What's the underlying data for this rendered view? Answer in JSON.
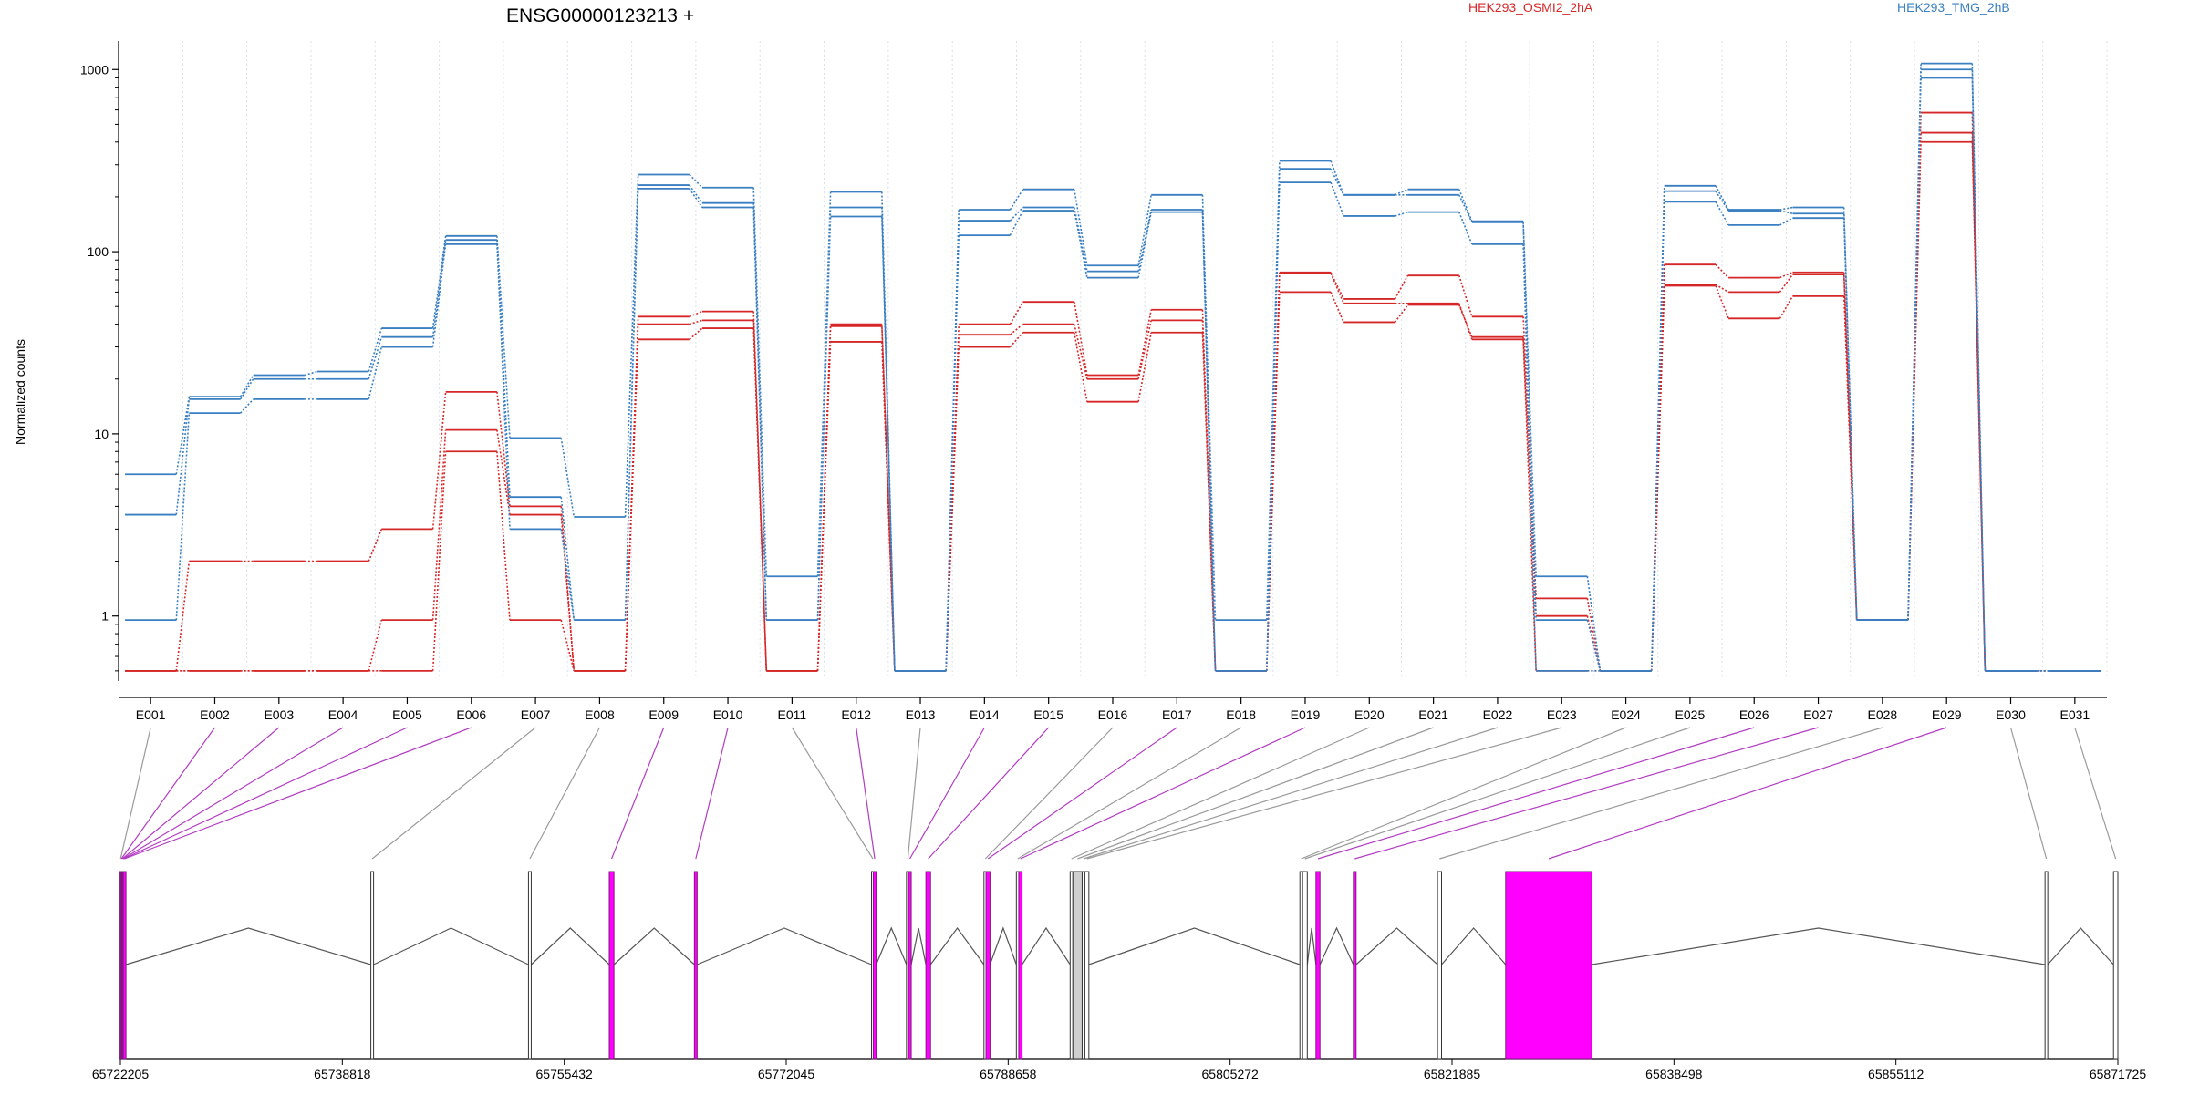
{
  "chart_data": {
    "type": "line",
    "title": "ENSG00000123213 +",
    "xlabel": "",
    "ylabel": "Normalized counts",
    "y_scale": "log",
    "ylim": [
      0.45,
      1100
    ],
    "y_ticks": [
      1,
      10,
      100,
      1000
    ],
    "y_tick_labels": [
      "1",
      "10",
      "100",
      "1000"
    ],
    "grid": "vertical dotted lines at exon boundaries",
    "legend_placement": "top (color-coded text labels)",
    "categories": [
      "E001",
      "E002",
      "E003",
      "E004",
      "E005",
      "E006",
      "E007",
      "E008",
      "E009",
      "E010",
      "E011",
      "E012",
      "E013",
      "E014",
      "E015",
      "E016",
      "E017",
      "E018",
      "E019",
      "E020",
      "E021",
      "E022",
      "E023",
      "E024",
      "E025",
      "E026",
      "E027",
      "E028",
      "E029",
      "E030",
      "E031"
    ],
    "series": [
      {
        "name": "HEK293_OSMI2_2hA",
        "color": "#d62728",
        "group": 1,
        "values": [
          0.5,
          2.0,
          2.0,
          2.0,
          3.0,
          17,
          4.0,
          0.5,
          44,
          47,
          0.5,
          40,
          0.5,
          40,
          53,
          21,
          48,
          0.5,
          77,
          55,
          74,
          44,
          1.25,
          0.5,
          85,
          72,
          77,
          0.95,
          580,
          0.5,
          0.5
        ]
      },
      {
        "name": "",
        "color": "#d62728",
        "group": 1,
        "values": [
          0.5,
          0.5,
          0.5,
          0.5,
          0.95,
          10.5,
          3.6,
          0.5,
          40,
          42,
          0.5,
          39,
          0.5,
          35,
          40,
          20,
          42,
          0.5,
          76,
          52,
          52,
          33,
          1.0,
          0.5,
          66,
          60,
          75,
          0.95,
          450,
          0.5,
          0.5
        ]
      },
      {
        "name": "",
        "color": "#d62728",
        "group": 1,
        "values": [
          0.5,
          0.5,
          0.5,
          0.5,
          0.5,
          8.0,
          0.95,
          0.5,
          33,
          38,
          0.5,
          32,
          0.5,
          30,
          36,
          15,
          36,
          0.5,
          60,
          41,
          51,
          34,
          0.5,
          0.5,
          65,
          43,
          57,
          0.95,
          400,
          0.5,
          0.5
        ]
      },
      {
        "name": "HEK293_TMG_2hB",
        "color": "#3a7fc1",
        "group": 2,
        "values": [
          6.0,
          16,
          21,
          22,
          38,
          122,
          9.5,
          3.5,
          265,
          225,
          1.65,
          213,
          0.5,
          170,
          220,
          84,
          205,
          0.95,
          315,
          205,
          220,
          147,
          1.65,
          0.5,
          230,
          170,
          175,
          0.95,
          1080,
          0.5,
          0.5
        ]
      },
      {
        "name": "",
        "color": "#3a7fc1",
        "group": 2,
        "values": [
          3.6,
          15.5,
          20,
          20,
          34,
          116,
          4.5,
          0.95,
          232,
          185,
          0.95,
          175,
          0.5,
          148,
          175,
          78,
          170,
          0.5,
          285,
          205,
          205,
          145,
          0.95,
          0.5,
          215,
          168,
          162,
          0.95,
          1000,
          0.5,
          0.5
        ]
      },
      {
        "name": "",
        "color": "#3a7fc1",
        "group": 2,
        "values": [
          0.95,
          13,
          15.5,
          15.5,
          30,
          110,
          3.0,
          0.95,
          222,
          175,
          0.95,
          156,
          0.5,
          123,
          168,
          72,
          165,
          0.5,
          240,
          157,
          165,
          110,
          0.5,
          0.5,
          188,
          140,
          153,
          0.95,
          900,
          0.5,
          0.5
        ]
      }
    ],
    "gene_model": {
      "genomic_start": 65722205,
      "genomic_end": 65871725,
      "axis_ticks": [
        65722205,
        65738818,
        65755432,
        65772045,
        65788658,
        65805272,
        65821885,
        65838498,
        65855112,
        65871725
      ],
      "axis_tick_labels": [
        "65722205",
        "65738818",
        "65755432",
        "65772045",
        "65788658",
        "65805272",
        "65821885",
        "65838498",
        "65855112",
        "65871725"
      ],
      "highlight_color": "#ff00ff",
      "plain_color": "#ffffff",
      "exons": [
        {
          "id": "E001",
          "start": 65722205,
          "end": 65722230,
          "highlight": false
        },
        {
          "id": "E002",
          "start": 65722230,
          "end": 65722330,
          "highlight": true
        },
        {
          "id": "E003",
          "start": 65722330,
          "end": 65722380,
          "highlight": true
        },
        {
          "id": "E004",
          "start": 65722380,
          "end": 65722430,
          "highlight": true
        },
        {
          "id": "E005",
          "start": 65722430,
          "end": 65722480,
          "highlight": true
        },
        {
          "id": "E006",
          "start": 65722480,
          "end": 65722560,
          "highlight": true
        },
        {
          "id": "E007",
          "start": 65741000,
          "end": 65741110,
          "highlight": false
        },
        {
          "id": "E008",
          "start": 65752800,
          "end": 65752910,
          "highlight": false
        },
        {
          "id": "E009",
          "start": 65758800,
          "end": 65759150,
          "highlight": true
        },
        {
          "id": "E010",
          "start": 65765200,
          "end": 65765350,
          "highlight": true
        },
        {
          "id": "E011",
          "start": 65778500,
          "end": 65778560,
          "highlight": false
        },
        {
          "id": "E012",
          "start": 65778560,
          "end": 65778780,
          "highlight": true
        },
        {
          "id": "E013",
          "start": 65781100,
          "end": 65781200,
          "highlight": false
        },
        {
          "id": "E014",
          "start": 65781200,
          "end": 65781400,
          "highlight": true
        },
        {
          "id": "E015",
          "start": 65782500,
          "end": 65782850,
          "highlight": true
        },
        {
          "id": "E016",
          "start": 65786900,
          "end": 65787000,
          "highlight": false
        },
        {
          "id": "E017",
          "start": 65787000,
          "end": 65787300,
          "highlight": true
        },
        {
          "id": "E018",
          "start": 65789300,
          "end": 65789450,
          "highlight": false
        },
        {
          "id": "E019",
          "start": 65789450,
          "end": 65789700,
          "highlight": true
        },
        {
          "id": "E020",
          "start": 65793300,
          "end": 65793500,
          "highlight": false
        },
        {
          "id": "E021",
          "start": 65793500,
          "end": 65794200,
          "highlight": false
        },
        {
          "id": "E022",
          "start": 65794200,
          "end": 65794400,
          "highlight": false
        },
        {
          "id": "E023",
          "start": 65794400,
          "end": 65794700,
          "highlight": false
        },
        {
          "id": "E024",
          "start": 65810500,
          "end": 65810700,
          "highlight": false
        },
        {
          "id": "E025",
          "start": 65810700,
          "end": 65811050,
          "highlight": false
        },
        {
          "id": "E026",
          "start": 65811700,
          "end": 65812000,
          "highlight": true
        },
        {
          "id": "E027",
          "start": 65814500,
          "end": 65814700,
          "highlight": true
        },
        {
          "id": "E028",
          "start": 65820800,
          "end": 65821100,
          "highlight": false
        },
        {
          "id": "E029",
          "start": 65825900,
          "end": 65832350,
          "highlight": true
        },
        {
          "id": "E030",
          "start": 65866300,
          "end": 65866450,
          "highlight": false
        },
        {
          "id": "E031",
          "start": 65871400,
          "end": 65871725,
          "highlight": false
        }
      ]
    }
  }
}
